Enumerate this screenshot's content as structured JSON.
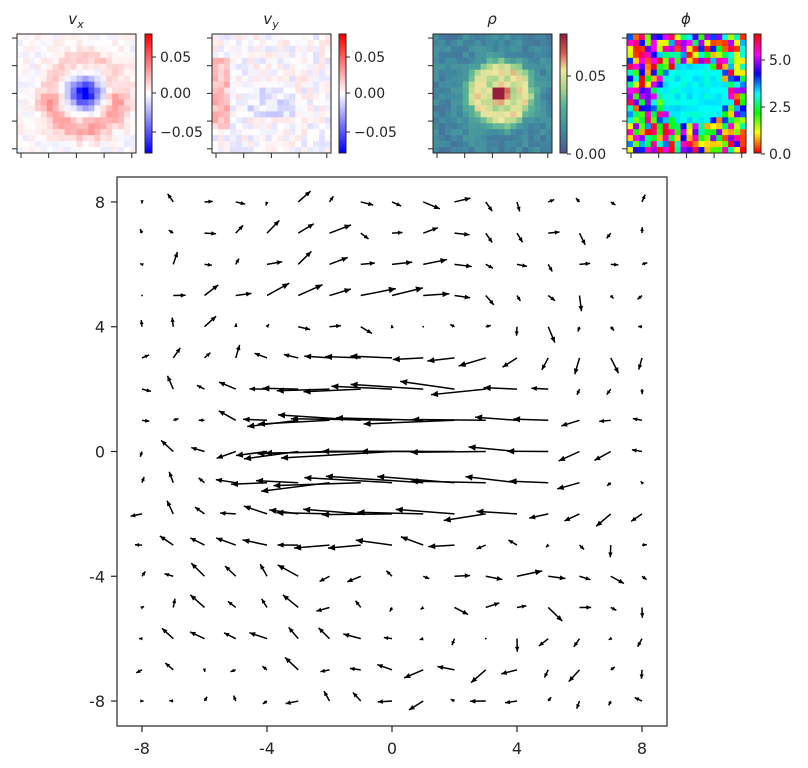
{
  "chart_data": [
    {
      "type": "heatmap",
      "title": "v_x",
      "colormap": "bwr",
      "colorbar_ticks": [
        "0.05",
        "0.00",
        "−0.05"
      ],
      "clim": [
        -0.08,
        0.08
      ]
    },
    {
      "type": "heatmap",
      "title": "v_y",
      "colormap": "bwr",
      "colorbar_ticks": [
        "0.05",
        "0.00",
        "−0.05"
      ],
      "clim": [
        -0.08,
        0.08
      ]
    },
    {
      "type": "heatmap",
      "title": "ρ",
      "colormap": "viridis-like",
      "colorbar_ticks": [
        "0.05",
        "0.00"
      ],
      "clim": [
        0,
        0.08
      ]
    },
    {
      "type": "heatmap",
      "title": "ϕ",
      "colormap": "hsv",
      "colorbar_ticks": [
        "5.0",
        "2.5",
        "0.0"
      ],
      "clim": [
        0,
        6.28
      ]
    },
    {
      "type": "quiver",
      "xlim": [
        -8.8,
        8.8
      ],
      "ylim": [
        -8.8,
        8.8
      ],
      "xticks": [
        "-8",
        "-4",
        "0",
        "4",
        "8"
      ],
      "yticks": [
        "8",
        "4",
        "0",
        "-4",
        "-8"
      ],
      "grid_spacing": 1,
      "grid_range": [
        -8,
        8
      ],
      "description_units": "vectors in data units",
      "sample_vectors": [
        {
          "x": 0,
          "y": 0,
          "u": -3.6,
          "v": 0.05
        },
        {
          "x": -1,
          "y": -1,
          "u": -3.6,
          "v": -0.1
        },
        {
          "x": 2,
          "y": 2,
          "u": -2.6,
          "v": -0.2
        },
        {
          "x": 3,
          "y": -4,
          "u": 1.2,
          "v": 0.1
        },
        {
          "x": -7,
          "y": 2,
          "u": 0.2,
          "v": 0.8
        }
      ]
    }
  ]
}
